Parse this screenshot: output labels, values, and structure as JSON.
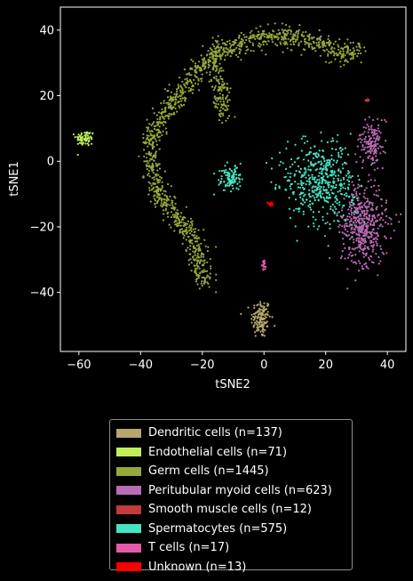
{
  "chart_data": {
    "type": "scatter",
    "title": "",
    "xlabel": "tSNE2",
    "ylabel": "tSNE1",
    "xlim": [
      -66,
      46
    ],
    "ylim": [
      -58,
      47
    ],
    "xticks": [
      -60,
      -40,
      -20,
      0,
      20,
      40
    ],
    "yticks": [
      40,
      20,
      0,
      -20,
      -40
    ],
    "grid": false,
    "legend_position": "below",
    "background": "#000000",
    "series": [
      {
        "name": "Dendritic cells (n=137)",
        "color": "#b5a86a",
        "n": 137,
        "clusters": [
          {
            "cx": -1,
            "cy": -48,
            "sx": 1.6,
            "sy": 3.0,
            "count": 137
          }
        ]
      },
      {
        "name": "Endothelial cells (n=71)",
        "color": "#c0ef5a",
        "n": 71,
        "clusters": [
          {
            "cx": -58,
            "cy": 7,
            "sx": 1.5,
            "sy": 1.2,
            "count": 71
          }
        ]
      },
      {
        "name": "Germ cells (n=1445)",
        "color": "#94a93c",
        "n": 1445,
        "arc": [
          [
            -19,
            -37
          ],
          [
            -21,
            -32
          ],
          [
            -22,
            -26
          ],
          [
            -25,
            -21
          ],
          [
            -30,
            -15
          ],
          [
            -34,
            -10
          ],
          [
            -37,
            -3
          ],
          [
            -37,
            4
          ],
          [
            -35,
            10
          ],
          [
            -31,
            16
          ],
          [
            -26,
            22
          ],
          [
            -22,
            27
          ],
          [
            -17,
            32
          ],
          [
            -11,
            35
          ],
          [
            -3,
            37
          ],
          [
            5,
            38
          ],
          [
            13,
            37
          ],
          [
            20,
            35
          ],
          [
            25,
            33
          ],
          [
            29,
            32
          ],
          [
            31,
            35
          ]
        ],
        "arc_spread": 1.6,
        "branch": [
          [
            -15,
            35
          ],
          [
            -15,
            28
          ],
          [
            -14,
            20
          ],
          [
            -13,
            14
          ]
        ],
        "branch_spread": 1.4
      },
      {
        "name": "Peritubular myoid cells (n=623)",
        "color": "#b96bb3",
        "n": 623,
        "clusters": [
          {
            "cx": 32,
            "cy": -20,
            "sx": 3.8,
            "sy": 6.0,
            "count": 470
          },
          {
            "cx": 35,
            "cy": 6,
            "sx": 2.2,
            "sy": 3.2,
            "count": 153
          }
        ]
      },
      {
        "name": "Smooth muscle cells (n=12)",
        "color": "#c23a3a",
        "n": 12,
        "clusters": [
          {
            "cx": 33.5,
            "cy": 18.5,
            "sx": 0.3,
            "sy": 0.3,
            "count": 12
          }
        ]
      },
      {
        "name": "Spermatocytes (n=575)",
        "color": "#46e3c2",
        "n": 575,
        "clusters": [
          {
            "cx": 18,
            "cy": -6,
            "sx": 6.0,
            "sy": 6.0,
            "count": 470
          },
          {
            "cx": -11,
            "cy": -5,
            "sx": 1.7,
            "sy": 2.0,
            "count": 105
          }
        ]
      },
      {
        "name": "T cells (n=17)",
        "color": "#e35aa8",
        "n": 17,
        "clusters": [
          {
            "cx": 0,
            "cy": -32,
            "sx": 0.3,
            "sy": 0.8,
            "count": 17
          }
        ]
      },
      {
        "name": "Unknown (n=13)",
        "color": "#ff0000",
        "n": 13,
        "clusters": [
          {
            "cx": 2,
            "cy": -13,
            "sx": 0.4,
            "sy": 0.4,
            "count": 13
          }
        ]
      }
    ]
  }
}
